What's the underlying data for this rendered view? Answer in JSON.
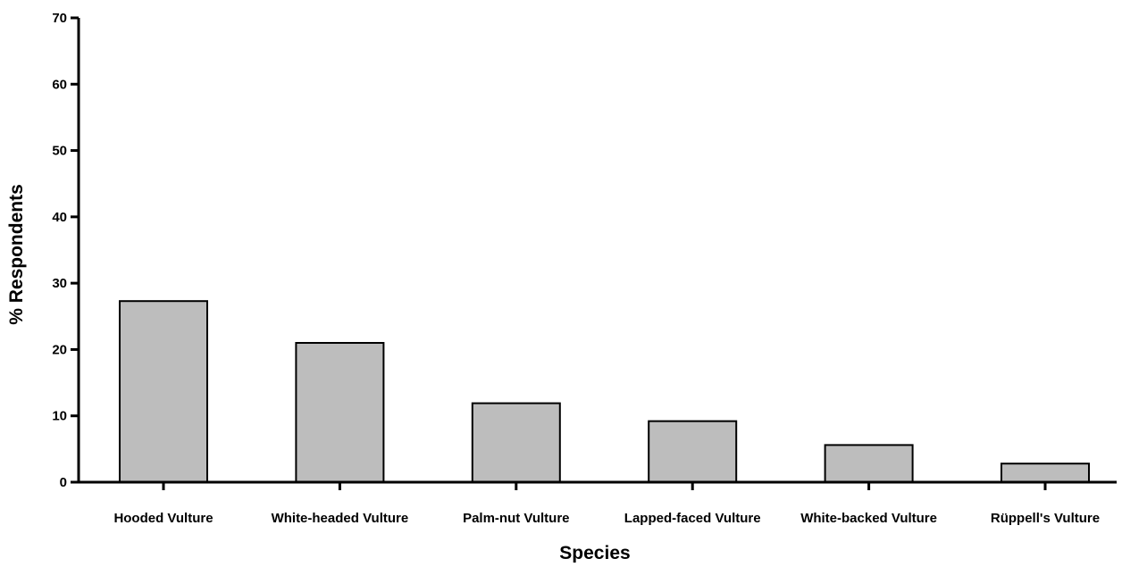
{
  "chart_data": {
    "type": "bar",
    "categories": [
      "Hooded Vulture",
      "White-headed Vulture",
      "Palm-nut Vulture",
      "Lapped-faced Vulture",
      "White-backed Vulture",
      "Rüppell's Vulture"
    ],
    "values": [
      27.3,
      21.0,
      11.9,
      9.2,
      5.6,
      2.8
    ],
    "xlabel": "Species",
    "ylabel": "% Respondents",
    "ylim": [
      0,
      70
    ],
    "yticks": [
      0,
      10,
      20,
      30,
      40,
      50,
      60,
      70
    ],
    "grid": false,
    "legend": "none",
    "bar_color": "#bdbdbd",
    "edge_color": "#000000"
  }
}
